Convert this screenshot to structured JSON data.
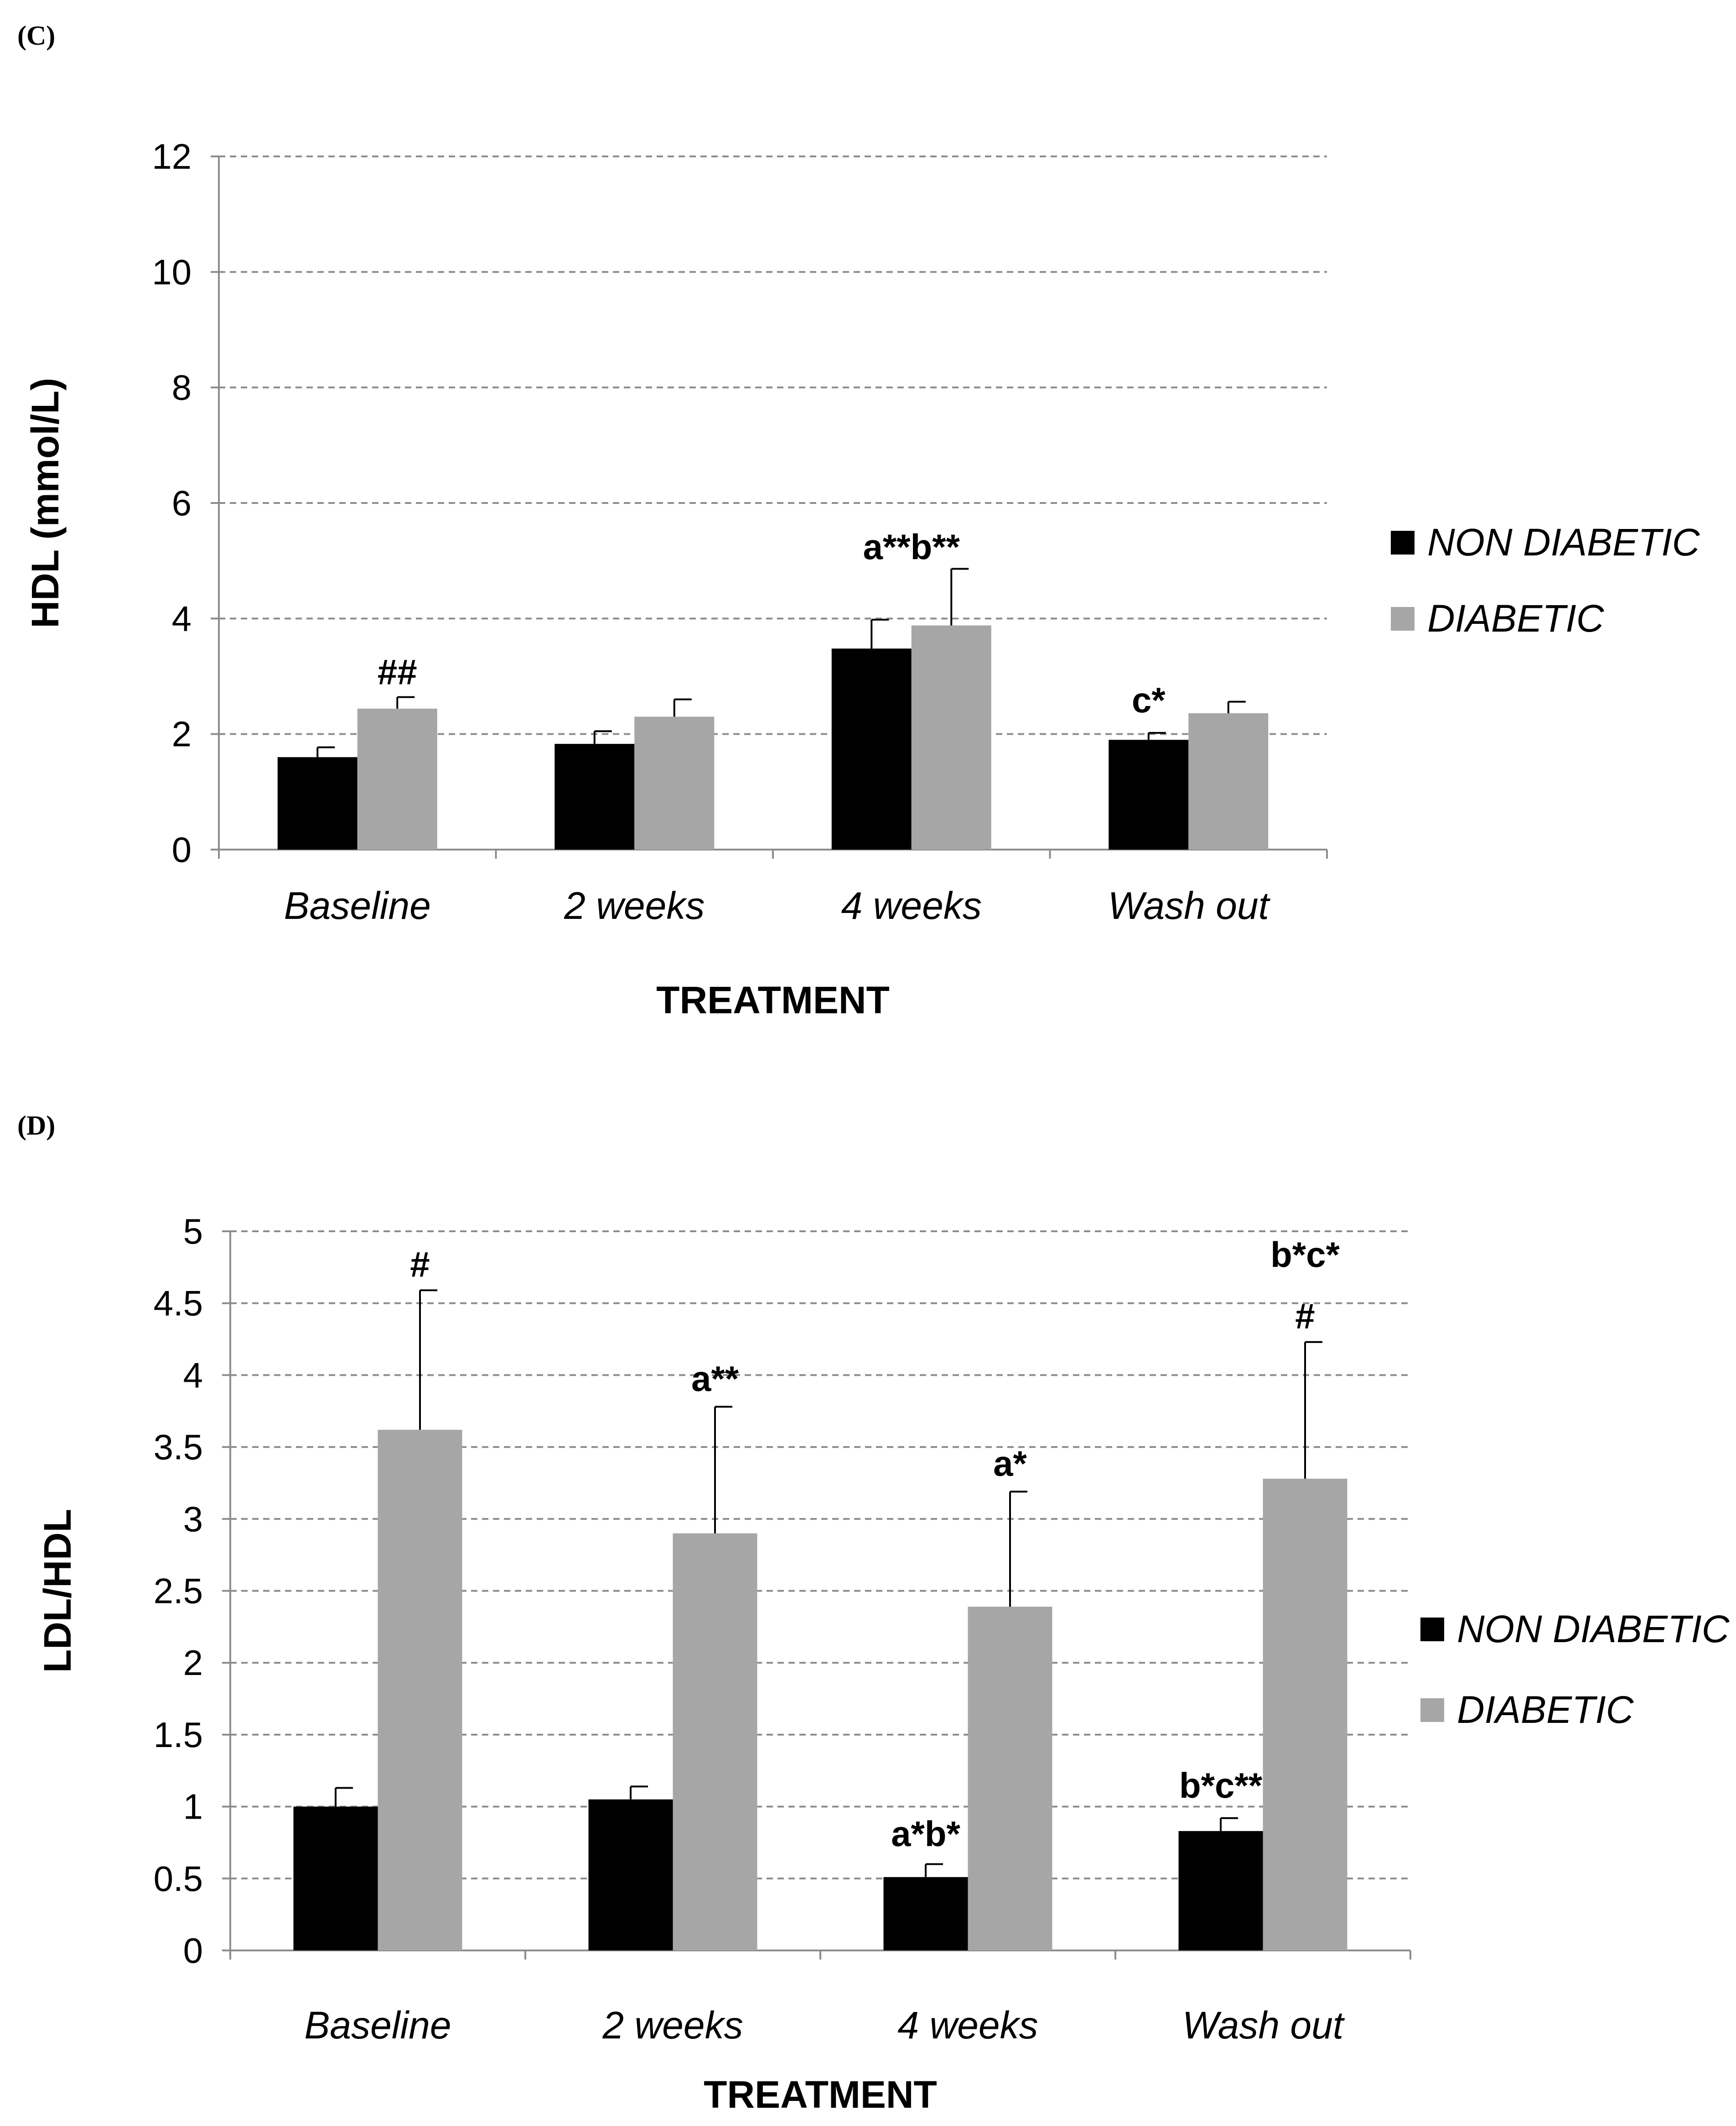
{
  "chart_data": [
    {
      "panel": "(C)",
      "type": "bar",
      "title": "",
      "xlabel": "TREATMENT",
      "ylabel": "HDL  (mmol/L)",
      "ylim": [
        0,
        12
      ],
      "yticks": [
        0,
        2,
        4,
        6,
        8,
        10,
        12
      ],
      "ytick_labels": [
        "0",
        "2",
        "4",
        "6",
        "8",
        "10",
        "12"
      ],
      "grid": true,
      "legend_position": "right",
      "categories": [
        "Baseline",
        "2 weeks",
        "4 weeks",
        "Wash out"
      ],
      "series": [
        {
          "name": "NON DIABETIC",
          "color": "#000000",
          "values": [
            1.6,
            1.83,
            3.48,
            1.9
          ],
          "errors": [
            0.17,
            0.22,
            0.5,
            0.12
          ]
        },
        {
          "name": "DIABETIC",
          "color": "#a6a6a6",
          "values": [
            2.44,
            2.3,
            3.88,
            2.36
          ],
          "errors": [
            0.2,
            0.3,
            0.98,
            0.2
          ]
        }
      ],
      "annotations": [
        {
          "category": 0,
          "series": 1,
          "text": "##"
        },
        {
          "category": 2,
          "series": "both",
          "text": "a**b**"
        },
        {
          "category": 3,
          "series": 0,
          "text": "c*"
        }
      ]
    },
    {
      "panel": "(D)",
      "type": "bar",
      "title": "",
      "xlabel": "TREATMENT",
      "ylabel": "LDL/HDL",
      "ylim": [
        0,
        5
      ],
      "yticks": [
        0,
        0.5,
        1,
        1.5,
        2,
        2.5,
        3,
        3.5,
        4,
        4.5,
        5
      ],
      "ytick_labels": [
        "0",
        "0.5",
        "1",
        "1.5",
        "2",
        "2.5",
        "3",
        "3.5",
        "4",
        "4.5",
        "5"
      ],
      "grid": true,
      "legend_position": "right",
      "categories": [
        "Baseline",
        "2 weeks",
        "4 weeks",
        "Wash out"
      ],
      "series": [
        {
          "name": "NON DIABETIC",
          "color": "#000000",
          "values": [
            1.0,
            1.05,
            0.51,
            0.83
          ],
          "errors": [
            0.13,
            0.09,
            0.09,
            0.09
          ]
        },
        {
          "name": "DIABETIC",
          "color": "#a6a6a6",
          "values": [
            3.62,
            2.9,
            2.39,
            3.28
          ],
          "errors": [
            0.97,
            0.88,
            0.8,
            0.95
          ]
        }
      ],
      "annotations": [
        {
          "category": 0,
          "series": 1,
          "text": "#"
        },
        {
          "category": 1,
          "series": 1,
          "text": "a**"
        },
        {
          "category": 2,
          "series": 1,
          "text": "a*"
        },
        {
          "category": 2,
          "series": 0,
          "text": "a*b*"
        },
        {
          "category": 3,
          "series": 0,
          "text": "b*c**"
        },
        {
          "category": 3,
          "series": 1,
          "text": "#"
        },
        {
          "category": 3,
          "series": 1,
          "text": "b*c*",
          "level": 2
        }
      ]
    }
  ]
}
